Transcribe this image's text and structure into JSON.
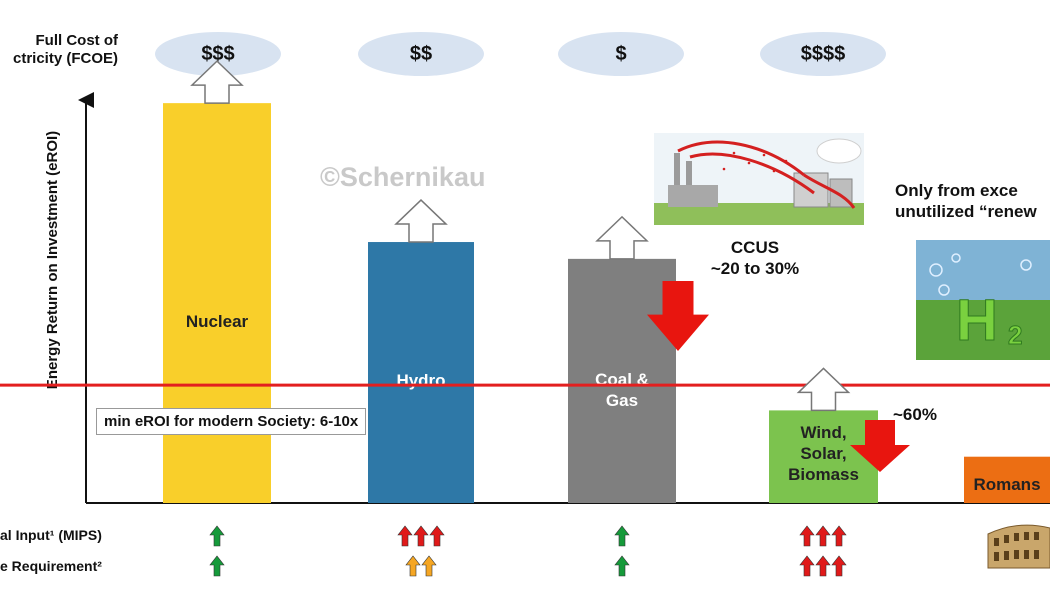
{
  "fcoe": {
    "label": "Full Cost of\nctricity (FCOE)",
    "values": [
      "$$$",
      "$$",
      "$",
      "$$$$"
    ]
  },
  "watermark": "©Schernikau",
  "chart_data": {
    "type": "bar",
    "ylabel": "Energy Return on Investment (eROI)",
    "categories": [
      "Nuclear",
      "Hydro",
      "Coal & Gas",
      "Wind, Solar, Biomass",
      "Romans"
    ],
    "values": [
      95,
      62,
      58,
      22,
      11
    ],
    "ylim": [
      0,
      110
    ],
    "threshold": {
      "value": 28,
      "label": "min eROI for modern Society: 6-10x"
    },
    "colors": [
      "#f9cf2a",
      "#2e78a7",
      "#7f7f7f",
      "#7cc34e",
      "#ec6e13"
    ],
    "label_colors": [
      "#222222",
      "#ffffff",
      "#ffffff",
      "#222222",
      "#222222"
    ],
    "grid": false,
    "annotations": [
      "CCUS\n~20 to 30%",
      "~60%",
      "Only from exce\nunutilized “renew"
    ]
  },
  "rows": {
    "material_label": "al Input¹ (MIPS)",
    "land_label": "e Requirement²"
  },
  "arrows": {
    "material": [
      [
        "green"
      ],
      [
        "red",
        "red",
        "red"
      ],
      [
        "green"
      ],
      [
        "red",
        "red",
        "red"
      ]
    ],
    "land": [
      [
        "green"
      ],
      [
        "orange",
        "orange"
      ],
      [
        "green"
      ],
      [
        "red",
        "red",
        "red"
      ]
    ]
  },
  "colors": {
    "threshold_line": "#e31f1f",
    "down_arrow": "#e8150f",
    "oval": "#d8e3f1",
    "arrow_green": "#159a3a",
    "arrow_red": "#e01a1a",
    "arrow_orange": "#f5a623"
  },
  "icons": [
    "up-outline-arrow-icon",
    "red-down-arrow-icon",
    "ccus-plant-image",
    "hydrogen-h2-image",
    "colosseum-image"
  ]
}
